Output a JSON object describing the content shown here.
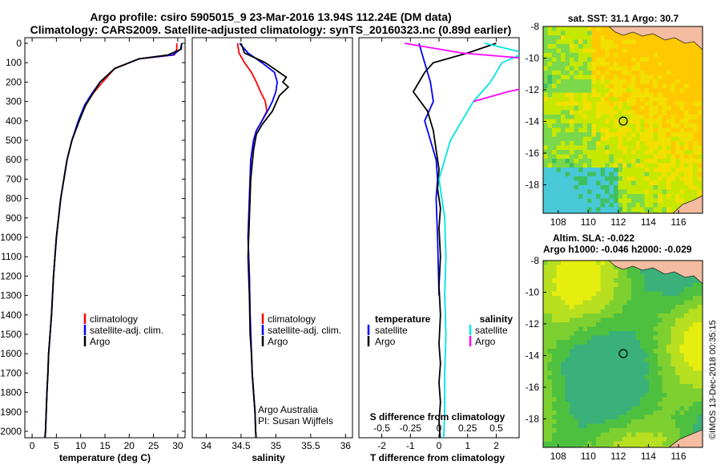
{
  "titles": {
    "line1": "Argo profile: csiro 5905015_9 23-Mar-2016 13.94S 112.24E (DM data)",
    "line2": "Climatology: CARS2009. Satellite-adjusted climatology: synTS_20160323.nc (0.89d earlier)"
  },
  "credit": "©IMOS 13-Dec-2018 00:35:15",
  "colors": {
    "climatology": "#ff0000",
    "satellite": "#0000ff",
    "argo": "#000000",
    "sal_satellite": "#00e5e5",
    "sal_argo": "#ff00ff"
  },
  "chart_data": [
    {
      "type": "line",
      "xlabel": "temperature (deg C)",
      "ylim": [
        2050,
        0
      ],
      "xlim": [
        -1.5,
        31.5
      ],
      "x_ticks": [
        "0",
        "5",
        "10",
        "15",
        "20",
        "25",
        "30"
      ],
      "y_ticks": [
        "0",
        "100",
        "200",
        "300",
        "400",
        "500",
        "600",
        "700",
        "800",
        "900",
        "1000",
        "1100",
        "1200",
        "1300",
        "1400",
        "1500",
        "1600",
        "1700",
        "1800",
        "1900",
        "2000"
      ],
      "legend": [
        "climatology",
        "satellite-adj. clim.",
        "Argo"
      ],
      "series": [
        {
          "name": "climatology",
          "x": [
            29.8,
            29.8,
            29.3,
            22,
            17,
            14.5,
            12.5,
            11,
            9.6,
            8.2,
            7.2,
            5.9,
            5.0,
            4.4,
            4.0,
            3.7,
            3.4,
            3.25,
            3.05,
            2.9,
            2.75,
            2.6
          ],
          "y": [
            0,
            30,
            60,
            80,
            130,
            200,
            260,
            320,
            400,
            500,
            600,
            800,
            1000,
            1200,
            1400,
            1500,
            1600,
            1700,
            1800,
            1900,
            2000,
            2050
          ]
        },
        {
          "name": "satellite-adj. clim.",
          "x": [
            30.8,
            30.6,
            29,
            22,
            17,
            14,
            12.3,
            10.8,
            9.5,
            8.2,
            7.2,
            5.9,
            5.0,
            4.4,
            4.0,
            3.7,
            3.4,
            3.25,
            3.05,
            2.9,
            2.75,
            2.6
          ],
          "y": [
            0,
            30,
            60,
            80,
            130,
            200,
            260,
            320,
            400,
            500,
            600,
            800,
            1000,
            1200,
            1400,
            1500,
            1600,
            1700,
            1800,
            1900,
            2000,
            2050
          ]
        },
        {
          "name": "Argo",
          "x": [
            30.8,
            30.7,
            28,
            22,
            17,
            14,
            12.5,
            11,
            9.7,
            8.2,
            7.2,
            5.9,
            5.0,
            4.4,
            4.0,
            3.7,
            3.4,
            3.25,
            3.05,
            2.9,
            2.75,
            2.6
          ],
          "y": [
            0,
            30,
            60,
            80,
            130,
            200,
            260,
            320,
            400,
            500,
            600,
            800,
            1000,
            1200,
            1400,
            1500,
            1600,
            1700,
            1800,
            1900,
            2000,
            2050
          ]
        }
      ]
    },
    {
      "type": "line",
      "xlabel": "salinity",
      "ylim": [
        2050,
        0
      ],
      "xlim": [
        33.8,
        36.1
      ],
      "x_ticks": [
        "34",
        "34.5",
        "35",
        "35.5",
        "36"
      ],
      "legend": [
        "climatology",
        "satellite-adj. clim.",
        "Argo"
      ],
      "annotations": [
        "Argo Australia",
        "PI: Susan Wijffels"
      ],
      "series": [
        {
          "name": "climatology",
          "x": [
            34.45,
            34.47,
            34.55,
            34.65,
            34.72,
            34.78,
            34.85,
            34.87,
            34.8,
            34.72,
            34.68,
            34.64,
            34.62,
            34.6,
            34.62,
            34.63,
            34.65,
            34.66,
            34.68,
            34.7,
            34.71,
            34.72
          ],
          "y": [
            0,
            50,
            100,
            150,
            200,
            250,
            300,
            350,
            400,
            450,
            500,
            600,
            800,
            1000,
            1200,
            1400,
            1600,
            1700,
            1800,
            1900,
            2000,
            2050
          ]
        },
        {
          "name": "satellite-adj. clim.",
          "x": [
            34.48,
            34.6,
            34.8,
            34.98,
            35.02,
            35.0,
            34.95,
            34.88,
            34.8,
            34.72,
            34.68,
            34.64,
            34.62,
            34.6,
            34.62,
            34.63,
            34.65,
            34.66,
            34.68,
            34.7,
            34.71,
            34.72
          ],
          "y": [
            0,
            50,
            100,
            150,
            200,
            250,
            300,
            350,
            400,
            450,
            500,
            600,
            800,
            1000,
            1200,
            1400,
            1600,
            1700,
            1800,
            1900,
            2000,
            2050
          ]
        },
        {
          "name": "Argo",
          "x": [
            34.5,
            34.55,
            34.85,
            35.05,
            35.15,
            35.1,
            35.18,
            35.05,
            34.95,
            34.8,
            34.72,
            34.68,
            34.64,
            34.62,
            34.6,
            34.62,
            34.63,
            34.65,
            34.66,
            34.68,
            34.7,
            34.71,
            34.72
          ],
          "y": [
            0,
            50,
            100,
            150,
            175,
            200,
            225,
            270,
            350,
            420,
            470,
            550,
            700,
            900,
            1100,
            1300,
            1500,
            1600,
            1700,
            1800,
            1900,
            2000,
            2050
          ]
        }
      ]
    },
    {
      "type": "line",
      "xlabel": "T difference from climatology",
      "ylim": [
        2050,
        0
      ],
      "xlim": [
        -2.8,
        2.8
      ],
      "x_ticks": [
        "-2",
        "-1",
        "0",
        "1",
        "2"
      ],
      "s_axis_label": "S difference from climatology",
      "s_ticks": [
        "-0.5",
        "-0.25",
        "0",
        "0.25",
        "0.5"
      ],
      "legend_left": {
        "title": "temperature",
        "items": [
          "satellite",
          "Argo"
        ]
      },
      "legend_right": {
        "title": "salinity",
        "items": [
          "satellite",
          "Argo"
        ]
      },
      "series": [
        {
          "name": "T satellite",
          "x": [
            -0.7,
            -0.5,
            -0.3,
            -0.2,
            -0.5,
            -0.3,
            -0.1,
            -0.05,
            -0.1,
            -0.05,
            0
          ],
          "y": [
            0,
            100,
            200,
            300,
            400,
            500,
            600,
            700,
            800,
            1000,
            1300
          ]
        },
        {
          "name": "T Argo",
          "x": [
            2,
            1.0,
            -0.2,
            -0.5,
            -0.9,
            -0.4,
            -0.2,
            -0.1,
            0,
            -0.05,
            0.05,
            0,
            0.05,
            0,
            0.05,
            0,
            0.05,
            0,
            0.05,
            0,
            0.05
          ],
          "y": [
            0,
            50,
            100,
            150,
            250,
            350,
            450,
            550,
            650,
            750,
            850,
            950,
            1100,
            1250,
            1400,
            1550,
            1650,
            1750,
            1850,
            1950,
            2050
          ]
        },
        {
          "name": "S satellite",
          "x": [
            0.4,
            0.75,
            0.55,
            0.45,
            0.3,
            0.1,
            0.0,
            0.05,
            0.06,
            0.05,
            0.06,
            0.05,
            0.05,
            0.04
          ],
          "y": [
            0,
            50,
            100,
            200,
            300,
            500,
            700,
            900,
            1100,
            1300,
            1500,
            1700,
            1900,
            2050
          ]
        },
        {
          "name": "S Argo",
          "x": [
            -0.3,
            0.2,
            1.2,
            1.5,
            1.0,
            0.6,
            0.3
          ],
          "y": [
            0,
            50,
            100,
            150,
            200,
            250,
            300
          ]
        }
      ]
    },
    {
      "type": "heatmap",
      "title": "sat. SST: 31.1 Argo: 30.7",
      "x_ticks": [
        "108",
        "110",
        "112",
        "114",
        "116"
      ],
      "y_ticks": [
        "-8",
        "-10",
        "-12",
        "-14",
        "-16",
        "-18"
      ],
      "marker": {
        "lon": 112.24,
        "lat": -13.94
      }
    },
    {
      "type": "heatmap",
      "title_line1": "Altim. SLA: -0.022",
      "title_line2": "Argo h1000: -0.046 h2000: -0.029",
      "x_ticks": [
        "108",
        "110",
        "112",
        "114",
        "116"
      ],
      "y_ticks": [
        "-8",
        "-10",
        "-12",
        "-14",
        "-16",
        "-18"
      ],
      "marker": {
        "lon": 112.24,
        "lat": -13.94
      }
    }
  ]
}
